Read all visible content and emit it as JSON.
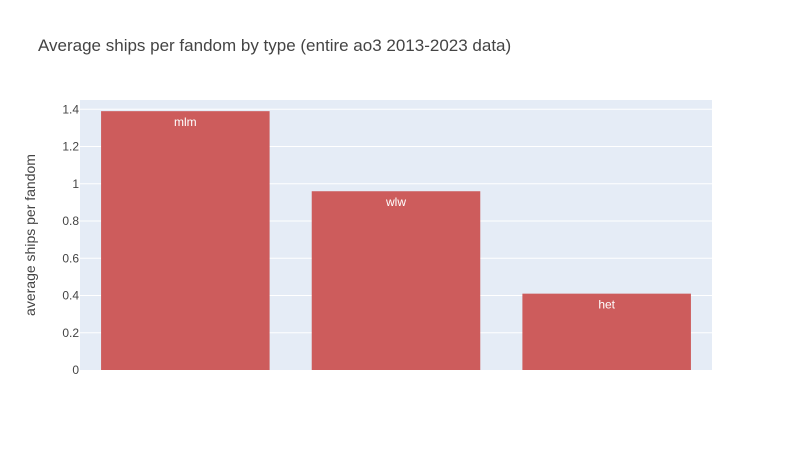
{
  "chart_data": {
    "type": "bar",
    "title": "Average ships per fandom by type (entire ao3 2013-2023 data)",
    "xlabel": "",
    "ylabel": "average ships per fandom",
    "categories": [
      "mlm",
      "wlw",
      "het"
    ],
    "values": [
      1.39,
      0.96,
      0.41
    ],
    "bar_labels": [
      "mlm",
      "wlw",
      "het"
    ],
    "ylim": [
      0,
      1.45
    ],
    "yticks": [
      0,
      0.2,
      0.4,
      0.6,
      0.8,
      1,
      1.2,
      1.4
    ],
    "ytick_labels": [
      "0",
      "0.2",
      "0.4",
      "0.6",
      "0.8",
      "1",
      "1.2",
      "1.4"
    ],
    "grid": true,
    "show_x_tick_labels": false,
    "colors": {
      "bar": "#cd5c5c",
      "plot_bg": "#e5ecf6",
      "grid": "#ffffff",
      "text": "#444444"
    }
  }
}
